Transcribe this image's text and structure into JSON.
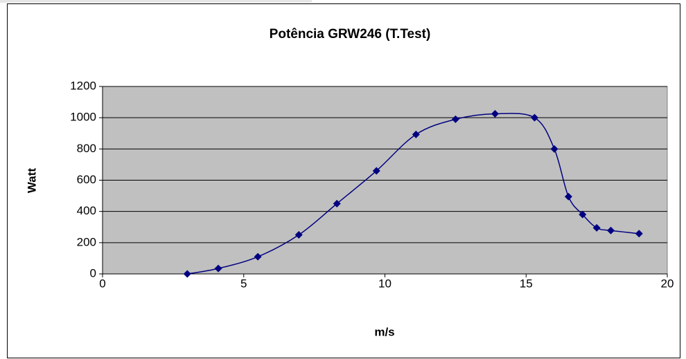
{
  "chart_data": {
    "type": "scatter",
    "title": "Potência GRW246 (T.Test)",
    "x_label": "m/s",
    "y_label": "Watt",
    "series": [
      {
        "color": "#000080",
        "x": [
          3,
          4.1,
          5.5,
          6.95,
          8.3,
          9.7,
          11.1,
          12.5,
          13.9,
          15.3,
          16,
          16.5,
          17,
          17.5,
          18,
          19
        ],
        "values": [
          0,
          35,
          110,
          250,
          450,
          660,
          893,
          990,
          1025,
          1000,
          800,
          495,
          380,
          295,
          278,
          258
        ]
      }
    ],
    "xlim": [
      0,
      20
    ],
    "xticks": [
      0,
      5,
      10,
      15,
      20
    ],
    "ylim": [
      0,
      1200
    ],
    "yticks": [
      0,
      200,
      400,
      600,
      800,
      1000,
      1200
    ],
    "grid": true,
    "smooth": true,
    "plot_background": "#c0c0c0"
  }
}
